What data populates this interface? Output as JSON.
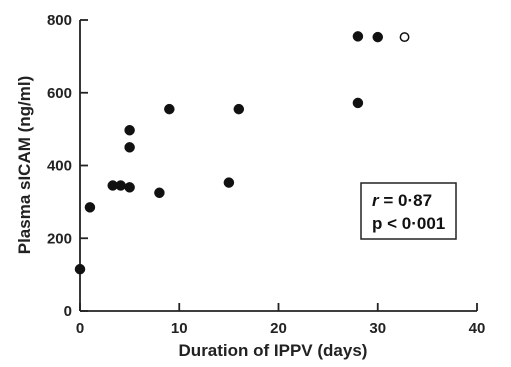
{
  "chart_data": {
    "type": "scatter",
    "title": "",
    "xlabel": "Duration of IPPV (days)",
    "ylabel": "Plasma sICAM (ng/ml)",
    "xlim": [
      0,
      40
    ],
    "ylim": [
      0,
      800
    ],
    "x_ticks": [
      "0",
      "10",
      "20",
      "30",
      "40"
    ],
    "y_ticks": [
      "0",
      "200",
      "400",
      "600",
      "800"
    ],
    "grid": false,
    "series": [
      {
        "marker": "filled-circle",
        "points": [
          {
            "x": 0,
            "y": 115
          },
          {
            "x": 1,
            "y": 285
          },
          {
            "x": 3.3,
            "y": 345
          },
          {
            "x": 4.1,
            "y": 345
          },
          {
            "x": 5,
            "y": 340
          },
          {
            "x": 5,
            "y": 450
          },
          {
            "x": 5,
            "y": 497
          },
          {
            "x": 8,
            "y": 325
          },
          {
            "x": 9,
            "y": 555
          },
          {
            "x": 15,
            "y": 353
          },
          {
            "x": 16,
            "y": 555
          },
          {
            "x": 28,
            "y": 755
          },
          {
            "x": 28,
            "y": 572
          },
          {
            "x": 30,
            "y": 753
          }
        ]
      },
      {
        "marker": "open-circle",
        "points": [
          {
            "x": 32.7,
            "y": 753
          }
        ]
      }
    ],
    "annotation": {
      "r_label": "r",
      "r_value": " = 0·87",
      "p_text": "p < 0·001"
    }
  }
}
